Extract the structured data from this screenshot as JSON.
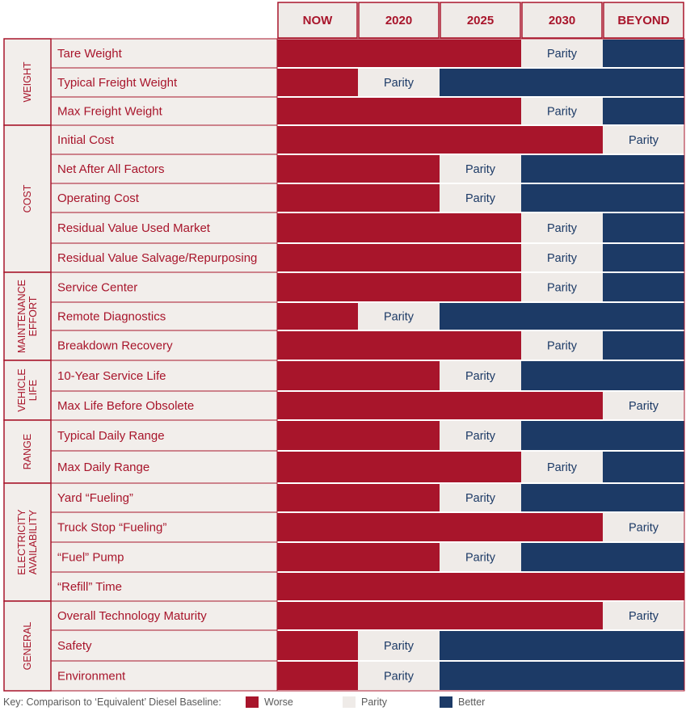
{
  "chart_data": {
    "type": "table",
    "columns": [
      "NOW",
      "2020",
      "2025",
      "2030",
      "BEYOND"
    ],
    "groups": [
      {
        "label": "WEIGHT",
        "rows": [
          {
            "label": "Tare Weight",
            "cells": [
              "worse",
              "worse",
              "worse",
              "parity",
              "better"
            ]
          },
          {
            "label": "Typical Freight Weight",
            "cells": [
              "worse",
              "parity",
              "better",
              "better",
              "better"
            ]
          },
          {
            "label": "Max Freight Weight",
            "cells": [
              "worse",
              "worse",
              "worse",
              "parity",
              "better"
            ]
          }
        ]
      },
      {
        "label": "COST",
        "rows": [
          {
            "label": "Initial Cost",
            "cells": [
              "worse",
              "worse",
              "worse",
              "worse",
              "parity"
            ]
          },
          {
            "label": "Net After All Factors",
            "cells": [
              "worse",
              "worse",
              "parity",
              "better",
              "better"
            ]
          },
          {
            "label": "Operating Cost",
            "cells": [
              "worse",
              "worse",
              "parity",
              "better",
              "better"
            ]
          },
          {
            "label": "Residual Value Used Market",
            "cells": [
              "worse",
              "worse",
              "worse",
              "parity",
              "better"
            ]
          },
          {
            "label": "Residual Value Salvage/Repurposing",
            "cells": [
              "worse",
              "worse",
              "worse",
              "parity",
              "better"
            ]
          }
        ]
      },
      {
        "label": "MAINTENANCE EFFORT",
        "label_lines": [
          "MAINTENANCE",
          "EFFORT"
        ],
        "rows": [
          {
            "label": "Service Center",
            "cells": [
              "worse",
              "worse",
              "worse",
              "parity",
              "better"
            ]
          },
          {
            "label": "Remote Diagnostics",
            "cells": [
              "worse",
              "parity",
              "better",
              "better",
              "better"
            ]
          },
          {
            "label": "Breakdown Recovery",
            "cells": [
              "worse",
              "worse",
              "worse",
              "parity",
              "better"
            ]
          }
        ]
      },
      {
        "label": "VEHICLE LIFE",
        "label_lines": [
          "VEHICLE",
          "LIFE"
        ],
        "rows": [
          {
            "label": "10-Year Service Life",
            "cells": [
              "worse",
              "worse",
              "parity",
              "better",
              "better"
            ]
          },
          {
            "label": "Max Life Before Obsolete",
            "cells": [
              "worse",
              "worse",
              "worse",
              "worse",
              "parity"
            ]
          }
        ]
      },
      {
        "label": "RANGE",
        "rows": [
          {
            "label": "Typical Daily Range",
            "cells": [
              "worse",
              "worse",
              "parity",
              "better",
              "better"
            ]
          },
          {
            "label": "Max Daily Range",
            "cells": [
              "worse",
              "worse",
              "worse",
              "parity",
              "better"
            ]
          }
        ]
      },
      {
        "label": "ELECTRICITY AVAILABILITY",
        "label_lines": [
          "ELECTRICITY",
          "AVAILABILITY"
        ],
        "rows": [
          {
            "label": "Yard “Fueling”",
            "cells": [
              "worse",
              "worse",
              "parity",
              "better",
              "better"
            ]
          },
          {
            "label": "Truck Stop “Fueling”",
            "cells": [
              "worse",
              "worse",
              "worse",
              "worse",
              "parity"
            ]
          },
          {
            "label": "“Fuel” Pump",
            "cells": [
              "worse",
              "worse",
              "parity",
              "better",
              "better"
            ]
          },
          {
            "label": "“Refill” Time",
            "cells": [
              "worse",
              "worse",
              "worse",
              "worse",
              "worse"
            ]
          }
        ]
      },
      {
        "label": "GENERAL",
        "rows": [
          {
            "label": "Overall Technology Maturity",
            "cells": [
              "worse",
              "worse",
              "worse",
              "worse",
              "parity"
            ]
          },
          {
            "label": "Safety",
            "cells": [
              "worse",
              "parity",
              "better",
              "better",
              "better"
            ]
          },
          {
            "label": "Environment",
            "cells": [
              "worse",
              "parity",
              "better",
              "better",
              "better"
            ]
          }
        ]
      }
    ],
    "parity_text": "Parity",
    "legend": {
      "title": "Key: Comparison to ‘Equivalent’ Diesel Baseline:",
      "items": [
        {
          "key": "worse",
          "label": "Worse"
        },
        {
          "key": "parity",
          "label": "Parity"
        },
        {
          "key": "better",
          "label": "Better"
        }
      ],
      "placement": "bottom"
    },
    "colors": {
      "worse": "#a8152b",
      "parity": "#efebe8",
      "better": "#1c3a66",
      "border": "#a8152b",
      "label_bg": "#f2eeeb"
    }
  }
}
